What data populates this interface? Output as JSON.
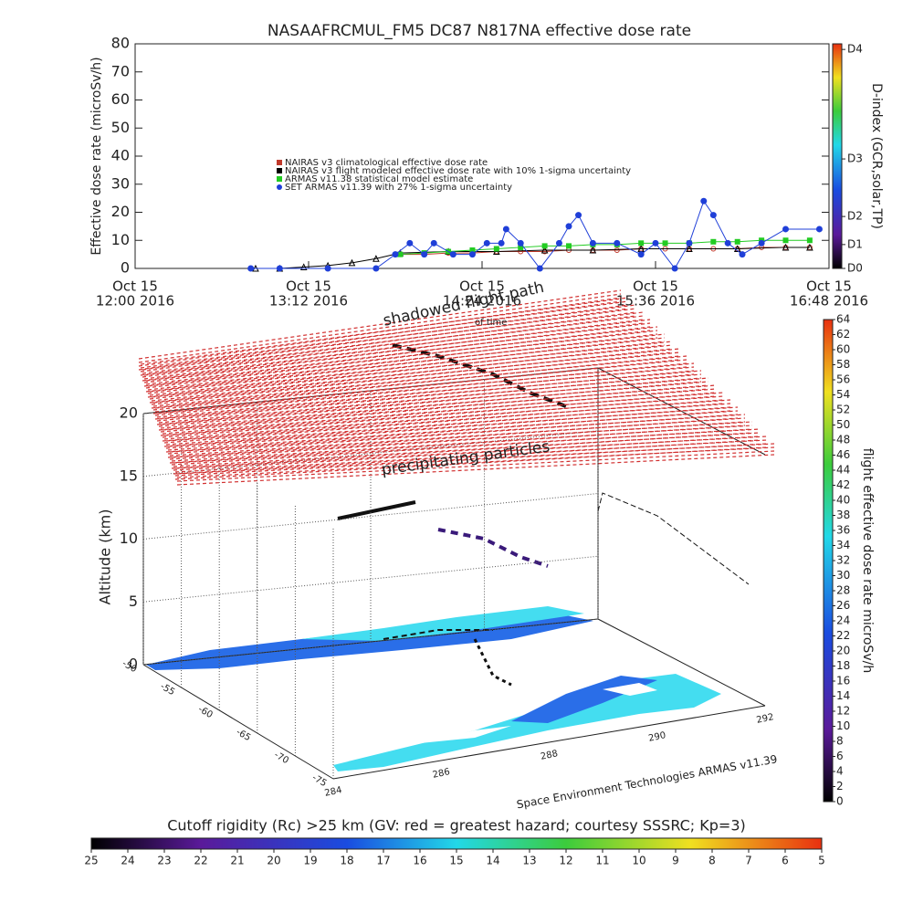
{
  "chart_data": [
    {
      "type": "line",
      "title": "NASAAFRCMUL_FM5 DC87 N817NA effective dose rate",
      "ylabel": "Effective dose rate (microSv/h)",
      "xlim": [
        "2016-10-15 12:00",
        "2016-10-15 16:48"
      ],
      "xticks": [
        {
          "value": "2016-10-15 12:00",
          "label": [
            "Oct 15",
            "12:00 2016"
          ]
        },
        {
          "value": "2016-10-15 13:12",
          "label": [
            "Oct 15",
            "13:12 2016"
          ]
        },
        {
          "value": "2016-10-15 14:24",
          "label": [
            "Oct 15",
            "14:24 2016"
          ]
        },
        {
          "value": "2016-10-15 15:36",
          "label": [
            "Oct 15",
            "15:36 2016"
          ]
        },
        {
          "value": "2016-10-15 16:48",
          "label": [
            "Oct 15",
            "16:48 2016"
          ]
        }
      ],
      "ylim": [
        0,
        80
      ],
      "yticks": [
        0,
        10,
        20,
        30,
        40,
        50,
        60,
        70,
        80
      ],
      "series": [
        {
          "name": "NAIRAS v3 climatological effective dose rate",
          "color": "#c0392b",
          "marker": "circle",
          "x": [
            "2016-10-15 13:50",
            "2016-10-15 14:00",
            "2016-10-15 14:10",
            "2016-10-15 14:20",
            "2016-10-15 14:30",
            "2016-10-15 14:40",
            "2016-10-15 14:50",
            "2016-10-15 15:00",
            "2016-10-15 15:10",
            "2016-10-15 15:20",
            "2016-10-15 15:30",
            "2016-10-15 15:40",
            "2016-10-15 15:50",
            "2016-10-15 16:00",
            "2016-10-15 16:10",
            "2016-10-15 16:20",
            "2016-10-15 16:30",
            "2016-10-15 16:40"
          ],
          "values": [
            5,
            5,
            5.5,
            5.5,
            6,
            6,
            6,
            6.5,
            6.5,
            6.5,
            7,
            7,
            7,
            7,
            7,
            7.5,
            7.5,
            7.5
          ]
        },
        {
          "name": "NAIRAS v3 flight modeled effective dose rate with 10% 1-sigma uncertainty",
          "color": "#000000",
          "marker": "triangle",
          "x": [
            "2016-10-15 12:50",
            "2016-10-15 13:00",
            "2016-10-15 13:10",
            "2016-10-15 13:20",
            "2016-10-15 13:30",
            "2016-10-15 13:40",
            "2016-10-15 13:50",
            "2016-10-15 14:10",
            "2016-10-15 14:30",
            "2016-10-15 14:50",
            "2016-10-15 15:10",
            "2016-10-15 15:30",
            "2016-10-15 15:50",
            "2016-10-15 16:10",
            "2016-10-15 16:30",
            "2016-10-15 16:40"
          ],
          "values": [
            0,
            0,
            0.5,
            1,
            2,
            3.5,
            5.5,
            6,
            6,
            6.5,
            6.5,
            7,
            7,
            7,
            7.5,
            7.5
          ]
        },
        {
          "name": "ARMAS v11.38 statistical model estimate",
          "color": "#22cc22",
          "marker": "square",
          "x": [
            "2016-10-15 13:50",
            "2016-10-15 14:00",
            "2016-10-15 14:10",
            "2016-10-15 14:20",
            "2016-10-15 14:30",
            "2016-10-15 14:40",
            "2016-10-15 14:50",
            "2016-10-15 15:00",
            "2016-10-15 15:10",
            "2016-10-15 15:20",
            "2016-10-15 15:30",
            "2016-10-15 15:40",
            "2016-10-15 15:50",
            "2016-10-15 16:00",
            "2016-10-15 16:10",
            "2016-10-15 16:20",
            "2016-10-15 16:30",
            "2016-10-15 16:40"
          ],
          "values": [
            5,
            5.5,
            6,
            6.5,
            7,
            7.5,
            8,
            8,
            8.5,
            8.5,
            9,
            9,
            9,
            9.5,
            9.5,
            10,
            10,
            10
          ]
        },
        {
          "name": "SET ARMAS v11.39 with 27% 1-sigma uncertainty",
          "color": "#1f3fd8",
          "marker": "dot",
          "x": [
            "2016-10-15 12:48",
            "2016-10-15 13:00",
            "2016-10-15 13:20",
            "2016-10-15 13:40",
            "2016-10-15 13:48",
            "2016-10-15 13:54",
            "2016-10-15 14:00",
            "2016-10-15 14:04",
            "2016-10-15 14:12",
            "2016-10-15 14:20",
            "2016-10-15 14:26",
            "2016-10-15 14:32",
            "2016-10-15 14:34",
            "2016-10-15 14:40",
            "2016-10-15 14:48",
            "2016-10-15 14:56",
            "2016-10-15 15:00",
            "2016-10-15 15:04",
            "2016-10-15 15:10",
            "2016-10-15 15:20",
            "2016-10-15 15:30",
            "2016-10-15 15:36",
            "2016-10-15 15:44",
            "2016-10-15 15:50",
            "2016-10-15 15:56",
            "2016-10-15 16:00",
            "2016-10-15 16:06",
            "2016-10-15 16:12",
            "2016-10-15 16:20",
            "2016-10-15 16:30",
            "2016-10-15 16:44"
          ],
          "values": [
            0,
            0,
            0,
            0,
            5,
            9,
            5,
            9,
            5,
            5,
            9,
            9,
            14,
            9,
            0,
            9,
            15,
            19,
            9,
            9,
            5,
            9,
            0,
            9,
            24,
            19,
            9,
            5,
            9,
            14,
            14
          ]
        }
      ],
      "colorbar": {
        "label": "D-index (GCR,solar,TP)",
        "ticks": [
          {
            "value": 0,
            "label": "D0"
          },
          {
            "value": 8.5,
            "label": "D1"
          },
          {
            "value": 18.5,
            "label": "D2"
          },
          {
            "value": 39,
            "label": "D3"
          },
          {
            "value": 78,
            "label": "D4"
          }
        ]
      }
    },
    {
      "type": "surface3d",
      "zlabel": "Altitude (km)",
      "zlim": [
        0,
        20
      ],
      "zticks": [
        0,
        5,
        10,
        15,
        20
      ],
      "xlim": [
        284,
        292
      ],
      "xticks": [
        284,
        286,
        288,
        290,
        292
      ],
      "ylim": [
        -50,
        -75
      ],
      "yticks": [
        -50,
        -55,
        -60,
        -65,
        -70,
        -75
      ],
      "annotations": [
        "shadowed flight path",
        "of time",
        "precipitating particles",
        "Space Environment Technologies ARMAS v11.39"
      ],
      "colorbar": {
        "label": "flight effective dose rate microSv/h",
        "lim": [
          0,
          64
        ],
        "ticks": [
          0,
          2,
          4,
          6,
          8,
          10,
          12,
          14,
          16,
          18,
          20,
          22,
          24,
          26,
          28,
          30,
          32,
          34,
          36,
          38,
          40,
          42,
          44,
          46,
          48,
          50,
          52,
          54,
          56,
          58,
          60,
          62,
          64
        ]
      },
      "colorbar2": {
        "title": "Cutoff rigidity (Rc) >25 km (GV: red = greatest hazard; courtesy SSSRC; Kp=3)",
        "lim": [
          25,
          5
        ],
        "ticks": [
          25,
          24,
          23,
          22,
          21,
          20,
          19,
          18,
          17,
          16,
          15,
          14,
          13,
          12,
          11,
          10,
          9,
          8,
          7,
          6,
          5
        ]
      }
    }
  ]
}
